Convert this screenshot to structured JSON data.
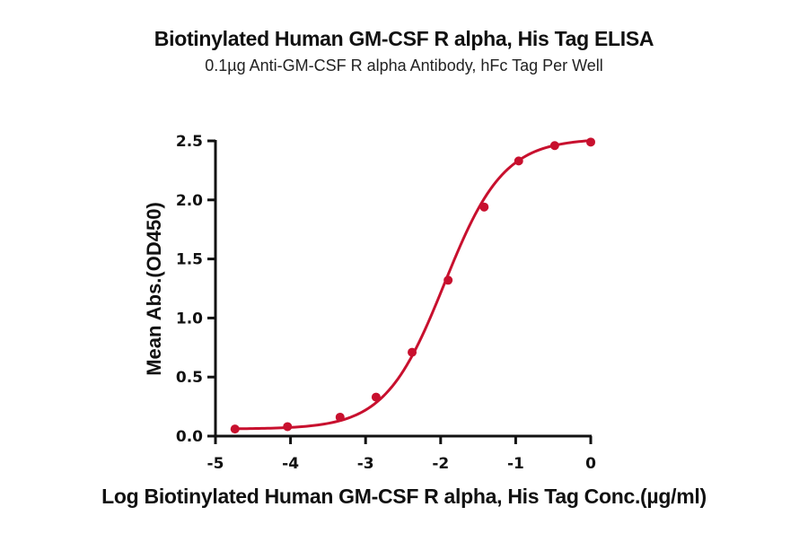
{
  "chart_data": {
    "type": "line",
    "title": "Biotinylated Human GM-CSF R alpha, His Tag ELISA",
    "subtitle": "0.1µg Anti-GM-CSF R alpha Antibody, hFc Tag Per Well",
    "xlabel": "Log Biotinylated Human GM-CSF R alpha, His Tag Conc.(µg/ml)",
    "ylabel": "Mean Abs.(OD450)",
    "xlim": [
      -5,
      0
    ],
    "ylim": [
      0,
      2.5
    ],
    "x_ticks": [
      -5,
      -4,
      -3,
      -2,
      -1,
      0
    ],
    "x_tick_labels": [
      "-5",
      "-4",
      "-3",
      "-2",
      "-1",
      "0"
    ],
    "y_ticks": [
      0,
      0.5,
      1.0,
      1.5,
      2.0,
      2.5
    ],
    "y_tick_labels": [
      "0.0",
      "0.5",
      "1.0",
      "1.5",
      "2.0",
      "2.5"
    ],
    "grid": false,
    "legend": null,
    "series": [
      {
        "name": "Biotinylated Human GM-CSF R alpha, His Tag",
        "color": "#C8102E",
        "x": [
          -4.74,
          -4.04,
          -3.34,
          -2.86,
          -2.38,
          -1.9,
          -1.42,
          -0.96,
          -0.48,
          0.0
        ],
        "y": [
          0.06,
          0.08,
          0.16,
          0.33,
          0.71,
          1.32,
          1.94,
          2.33,
          2.46,
          2.49
        ],
        "fit": {
          "model": "4PL",
          "bottom": 0.06,
          "top": 2.52,
          "logEC50": -1.95,
          "hill": 1.1
        }
      }
    ]
  },
  "colors": {
    "series": "#C8102E",
    "axis": "#111111"
  }
}
